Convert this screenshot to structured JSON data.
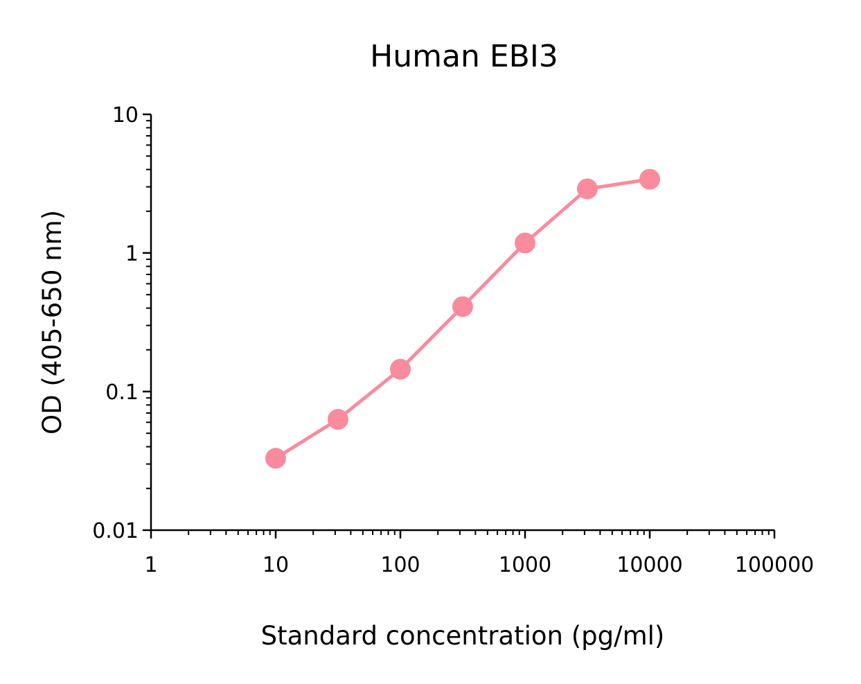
{
  "chart_data": {
    "type": "scatter",
    "title": "Human EBI3",
    "xlabel": "Standard concentration (pg/ml)",
    "ylabel": "OD (405-650 nm)",
    "x_scale": "log",
    "y_scale": "log",
    "xlim": [
      1,
      100000
    ],
    "ylim": [
      0.01,
      10
    ],
    "x_ticks": [
      1,
      10,
      100,
      1000,
      10000,
      100000
    ],
    "x_tick_labels": [
      "1",
      "10",
      "100",
      "1000",
      "10000",
      "100000"
    ],
    "y_ticks": [
      0.01,
      0.1,
      1,
      10
    ],
    "y_tick_labels": [
      "0.01",
      "0.1",
      "1",
      "10"
    ],
    "grid": false,
    "legend": "none",
    "series": [
      {
        "color": "#f98b9c",
        "marker": "circle",
        "line": true,
        "x": [
          10,
          31.6,
          100,
          316,
          1000,
          3160,
          10000
        ],
        "y": [
          0.033,
          0.063,
          0.145,
          0.41,
          1.18,
          2.9,
          3.4
        ]
      }
    ]
  }
}
